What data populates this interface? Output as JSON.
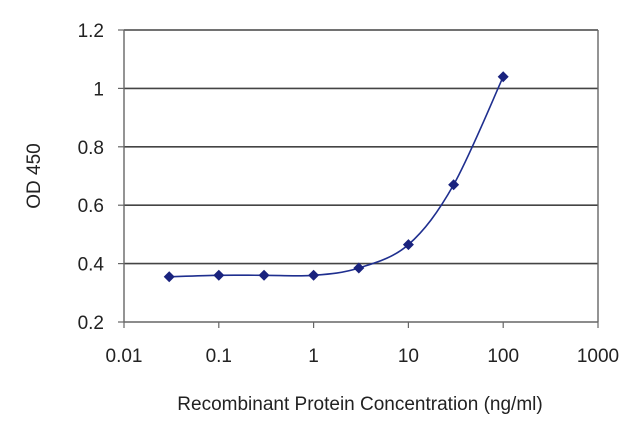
{
  "chart_data": {
    "type": "line",
    "x_scale": "log",
    "xlim": [
      0.01,
      1000
    ],
    "ylim": [
      0.2,
      1.2
    ],
    "xlabel": "Recombinant Protein Concentration (ng/ml)",
    "ylabel": "OD 450",
    "x_ticks": [
      {
        "value": 0.01,
        "label": "0.01"
      },
      {
        "value": 0.1,
        "label": "0.1"
      },
      {
        "value": 1,
        "label": "1"
      },
      {
        "value": 10,
        "label": "10"
      },
      {
        "value": 100,
        "label": "100"
      },
      {
        "value": 1000,
        "label": "1000"
      }
    ],
    "y_ticks": [
      {
        "value": 0.2,
        "label": "0.2"
      },
      {
        "value": 0.4,
        "label": "0.4"
      },
      {
        "value": 0.6,
        "label": "0.6"
      },
      {
        "value": 0.8,
        "label": "0.8"
      },
      {
        "value": 1.0,
        "label": "1"
      },
      {
        "value": 1.2,
        "label": "1.2"
      }
    ],
    "grid": "horizontal",
    "series": [
      {
        "x": [
          0.03,
          0.1,
          0.3,
          1,
          3,
          10,
          30,
          100
        ],
        "y": [
          0.355,
          0.36,
          0.36,
          0.36,
          0.385,
          0.465,
          0.67,
          1.04
        ]
      }
    ],
    "colors": {
      "series": "#1f2f8f",
      "marker": "#1a237e",
      "grid": "#444444",
      "frame": "#666666"
    }
  }
}
